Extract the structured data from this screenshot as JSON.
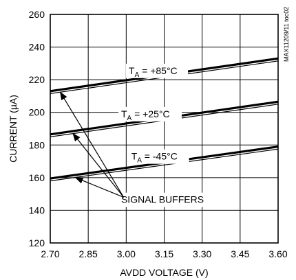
{
  "chart_data": {
    "type": "line",
    "xlabel": "AVDD VOLTAGE (V)",
    "ylabel": "CURRENT (µA)",
    "xlim": [
      2.7,
      3.6
    ],
    "ylim": [
      120,
      260
    ],
    "xticks": [
      "2.70",
      "2.85",
      "3.00",
      "3.15",
      "3.30",
      "3.45",
      "3.60"
    ],
    "yticks": [
      "120",
      "140",
      "160",
      "180",
      "200",
      "220",
      "240",
      "260"
    ],
    "grid": true,
    "side_tag": "MAX11209/11 toc02",
    "series": [
      {
        "name": "TA = +85°C",
        "label_main": "T",
        "label_sub": "A",
        "label_rest": " = +85°C",
        "thick": {
          "x": [
            2.7,
            3.6
          ],
          "y": [
            213,
            233
          ]
        },
        "thin": {
          "x": [
            2.7,
            3.6
          ],
          "y": [
            211.5,
            231.5
          ]
        }
      },
      {
        "name": "TA = +25°C",
        "label_main": "T",
        "label_sub": "A",
        "label_rest": " = +25°C",
        "thick": {
          "x": [
            2.7,
            3.6
          ],
          "y": [
            186.5,
            206.5
          ]
        },
        "thin": {
          "x": [
            2.7,
            3.6
          ],
          "y": [
            185,
            205
          ]
        }
      },
      {
        "name": "TA = -45°C",
        "label_main": "T",
        "label_sub": "A",
        "label_rest": " = -45°C",
        "thick": {
          "x": [
            2.7,
            3.6
          ],
          "y": [
            159.5,
            179
          ]
        },
        "thin": {
          "x": [
            2.7,
            3.6
          ],
          "y": [
            158,
            177.5
          ]
        }
      }
    ],
    "annotation": {
      "text": "SIGNAL BUFFERS",
      "arrow_targets": [
        {
          "x": 2.74,
          "y": 212.3
        },
        {
          "x": 2.79,
          "y": 187.0
        },
        {
          "x": 2.8,
          "y": 160.0
        }
      ]
    }
  }
}
